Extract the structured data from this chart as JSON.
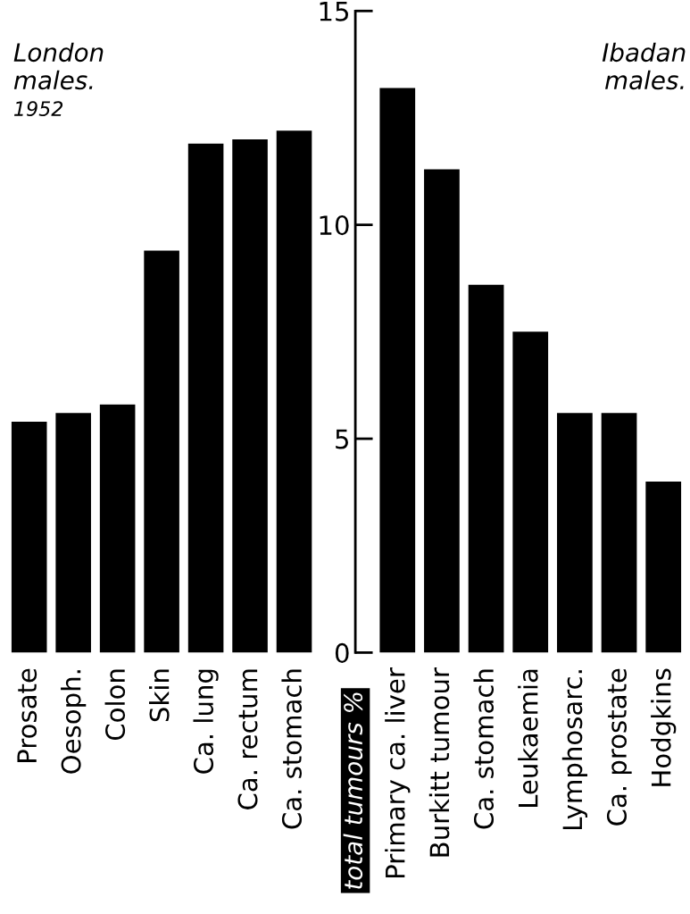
{
  "chart_data": [
    {
      "type": "bar",
      "title": "London\nmales.",
      "subtitle": "1952",
      "categories": [
        "Prosate",
        "Oesoph.",
        "Colon",
        "Skin",
        "Ca. lung",
        "Ca. rectum",
        "Ca. stomach"
      ],
      "values": [
        5.4,
        5.6,
        5.8,
        9.4,
        11.9,
        12.0,
        12.2
      ],
      "color": "#000000",
      "ylim": [
        0,
        15
      ],
      "tick_labels": "x"
    },
    {
      "type": "bar",
      "title": "Ibadan\nmales.",
      "ylabel": "total tumours %",
      "categories": [
        "Primary ca. liver",
        "Burkitt tumour",
        "Ca. stomach",
        "Leukaemia",
        "Lymphosarc.",
        "Ca. prostate",
        "Hodgkins"
      ],
      "values": [
        13.2,
        11.3,
        8.6,
        7.5,
        5.6,
        5.6,
        4.0
      ],
      "color": "#000000",
      "ylim": [
        0,
        15
      ],
      "yticks": [
        0,
        5,
        10,
        15
      ]
    }
  ]
}
